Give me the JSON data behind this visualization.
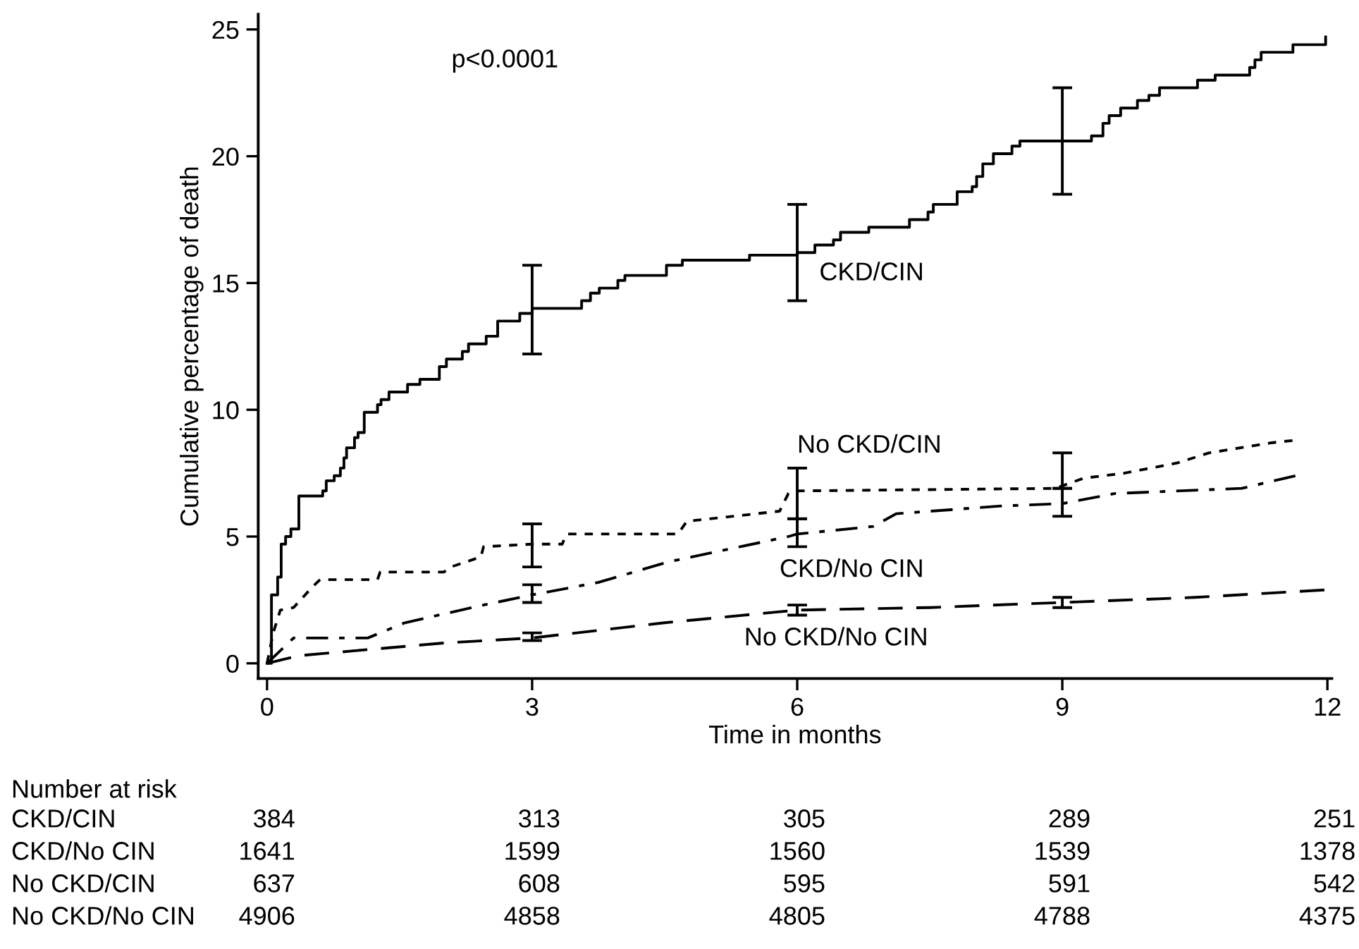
{
  "chart_data": {
    "type": "line",
    "xlabel": "Time in months",
    "ylabel": "Cumulative percentage of death",
    "xlim": [
      -0.1,
      12.05
    ],
    "xticks": [
      0,
      3,
      6,
      9,
      12
    ],
    "ylim": [
      -0.6,
      25.6
    ],
    "yticks": [
      0,
      5,
      10,
      15,
      20,
      25
    ],
    "series": [
      {
        "name": "CKD/CIN",
        "type": "step",
        "color": "#000000",
        "line_style": "solid",
        "x": [
          0,
          0.05,
          0.12,
          0.16,
          0.21,
          0.27,
          0.36,
          0.63,
          0.67,
          0.76,
          0.83,
          0.87,
          0.9,
          0.99,
          1.03,
          1.1,
          1.25,
          1.29,
          1.38,
          1.59,
          1.73,
          1.95,
          2.03,
          2.21,
          2.28,
          2.48,
          2.61,
          2.86,
          3.0,
          3.56,
          3.66,
          3.76,
          3.97,
          4.05,
          4.52,
          4.7,
          5.46,
          6.0,
          6.2,
          6.41,
          6.49,
          6.81,
          7.27,
          7.48,
          7.54,
          7.81,
          7.98,
          8.03,
          8.1,
          8.22,
          8.43,
          8.52,
          9.0,
          9.33,
          9.46,
          9.53,
          9.66,
          9.85,
          9.98,
          10.1,
          10.53,
          10.73,
          11.12,
          11.18,
          11.25,
          11.61,
          11.98
        ],
        "values": [
          0,
          2.7,
          3.4,
          4.7,
          5.0,
          5.3,
          6.6,
          6.8,
          7.2,
          7.4,
          7.7,
          8.1,
          8.5,
          8.9,
          9.1,
          9.9,
          10.2,
          10.4,
          10.7,
          11.0,
          11.2,
          11.7,
          12.0,
          12.3,
          12.6,
          12.9,
          13.5,
          13.8,
          14.0,
          14.3,
          14.6,
          14.8,
          15.1,
          15.3,
          15.7,
          15.9,
          16.1,
          16.2,
          16.5,
          16.7,
          17.0,
          17.2,
          17.5,
          17.8,
          18.1,
          18.6,
          18.8,
          19.2,
          19.7,
          20.1,
          20.4,
          20.6,
          20.6,
          20.8,
          21.3,
          21.6,
          21.9,
          22.2,
          22.4,
          22.7,
          23.0,
          23.2,
          23.5,
          23.8,
          24.1,
          24.4,
          24.7
        ],
        "errors": [
          null,
          null,
          null,
          null,
          null,
          null,
          null,
          null,
          null,
          null,
          null,
          null,
          null,
          null,
          null,
          null,
          null,
          null,
          null,
          null,
          null,
          null,
          null,
          null,
          null,
          null,
          null,
          null,
          [
            12.2,
            15.7
          ],
          null,
          null,
          null,
          null,
          null,
          null,
          null,
          null,
          [
            14.3,
            18.1
          ],
          null,
          null,
          null,
          null,
          null,
          null,
          null,
          null,
          null,
          null,
          null,
          null,
          null,
          null,
          [
            18.5,
            22.7
          ],
          null,
          null,
          null,
          null,
          null,
          null,
          null,
          null,
          null,
          null,
          null,
          null,
          null,
          null
        ]
      },
      {
        "name": "No CKD/CIN",
        "color": "#000000",
        "line_style": "dotted",
        "x": [
          0,
          0.07,
          0.15,
          0.3,
          0.51,
          0.6,
          1.25,
          1.28,
          2.0,
          2.08,
          2.42,
          2.45,
          3.0,
          3.34,
          3.39,
          4.65,
          4.75,
          5.8,
          5.9,
          6.0,
          8.92,
          9.0,
          9.24,
          9.7,
          10.3,
          10.66,
          11.37,
          11.64
        ],
        "values": [
          0,
          1.2,
          2.1,
          2.2,
          3.0,
          3.3,
          3.3,
          3.6,
          3.6,
          3.8,
          4.2,
          4.6,
          4.7,
          4.7,
          5.1,
          5.1,
          5.6,
          6.0,
          6.7,
          6.8,
          6.9,
          7.0,
          7.3,
          7.5,
          7.9,
          8.3,
          8.7,
          8.8
        ],
        "errors": [
          null,
          null,
          null,
          null,
          null,
          null,
          null,
          null,
          null,
          null,
          null,
          null,
          [
            3.8,
            5.5
          ],
          null,
          null,
          null,
          null,
          null,
          null,
          [
            5.7,
            7.7
          ],
          null,
          [
            6.9,
            8.3
          ],
          null,
          null,
          null,
          null,
          null,
          null
        ]
      },
      {
        "name": "CKD/No CIN",
        "color": "#000000",
        "line_style": "dashdot",
        "x": [
          0,
          0.15,
          0.3,
          1.14,
          1.56,
          2.45,
          3.0,
          3.76,
          4.54,
          5.9,
          6.0,
          6.86,
          7.12,
          8.28,
          9.0,
          9.6,
          11.03,
          11.64
        ],
        "values": [
          0,
          0.5,
          1.0,
          1.0,
          1.6,
          2.3,
          2.7,
          3.2,
          4.0,
          5.0,
          5.1,
          5.4,
          5.9,
          6.2,
          6.3,
          6.7,
          6.9,
          7.4
        ],
        "errors": [
          null,
          null,
          null,
          null,
          null,
          null,
          [
            2.4,
            3.1
          ],
          null,
          null,
          null,
          [
            4.6,
            5.7
          ],
          null,
          null,
          null,
          [
            5.8,
            6.9
          ],
          null,
          null,
          null
        ]
      },
      {
        "name": "No CKD/No CIN",
        "color": "#000000",
        "line_style": "dashed",
        "x": [
          0,
          0.36,
          1.0,
          2.0,
          3.0,
          4.5,
          6.0,
          7.5,
          9.0,
          10.5,
          12.0
        ],
        "values": [
          0,
          0.3,
          0.5,
          0.8,
          1.0,
          1.6,
          2.1,
          2.2,
          2.4,
          2.6,
          2.9
        ],
        "errors": [
          null,
          null,
          null,
          null,
          [
            0.9,
            1.2
          ],
          null,
          [
            1.9,
            2.3
          ],
          null,
          [
            2.2,
            2.6
          ],
          null,
          null
        ]
      }
    ],
    "annotations": [
      "p<0.0001",
      "Number at risk",
      "CKD/CIN",
      "384",
      "313",
      "305",
      "289",
      "251",
      "CKD/No CIN",
      "1641",
      "1599",
      "1560",
      "1539",
      "1378",
      "No CKD/CIN",
      "637",
      "608",
      "595",
      "591",
      "542",
      "No CKD/No CIN",
      "4906",
      "4858",
      "4805",
      "4788",
      "4375"
    ]
  }
}
